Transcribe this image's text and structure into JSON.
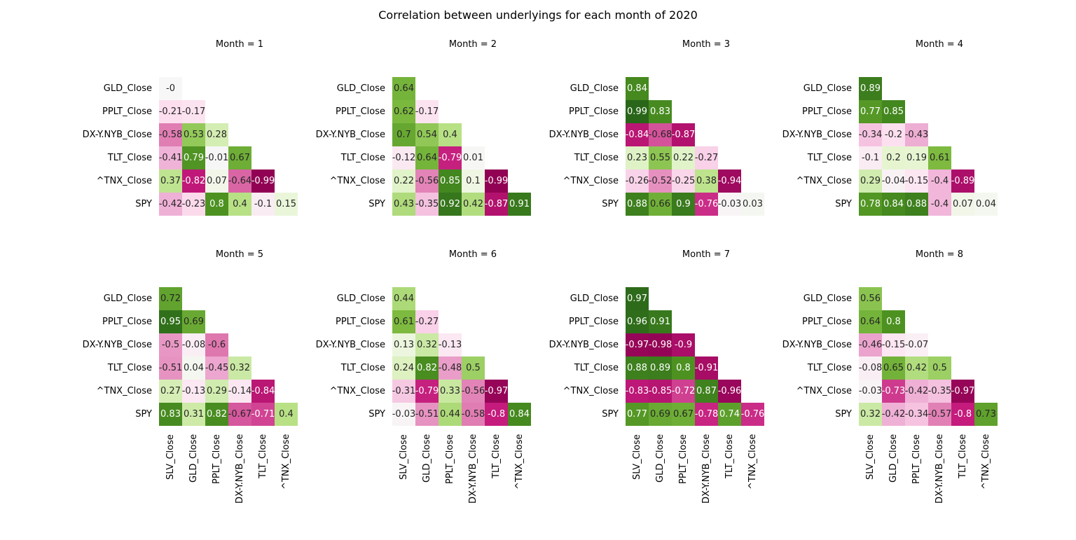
{
  "title": "Correlation between underlyings for each month of 2020",
  "chart_data": {
    "type": "heatmap",
    "title": "Correlation between underlyings for each month of 2020",
    "row_labels": [
      "GLD_Close",
      "PPLT_Close",
      "DX-Y.NYB_Close",
      "TLT_Close",
      "^TNX_Close",
      "SPY"
    ],
    "col_labels": [
      "SLV_Close",
      "GLD_Close",
      "PPLT_Close",
      "DX-Y.NYB_Close",
      "TLT_Close",
      "^TNX_Close"
    ],
    "colormap": "PiYG",
    "vmin": -1,
    "vmax": 1,
    "panels": [
      {
        "title": "Month = 1",
        "values": [
          [
            "-0"
          ],
          [
            "-0.21",
            "-0.17"
          ],
          [
            "-0.58",
            "0.53",
            "0.28"
          ],
          [
            "-0.41",
            "0.79",
            "-0.01",
            "0.67"
          ],
          [
            "0.37",
            "-0.82",
            "0.07",
            "-0.64",
            "-0.99"
          ],
          [
            "-0.42",
            "-0.23",
            "0.8",
            "0.4",
            "-0.1",
            "0.15"
          ]
        ]
      },
      {
        "title": "Month = 2",
        "values": [
          [
            "0.64"
          ],
          [
            "0.62",
            "-0.17"
          ],
          [
            "0.7",
            "0.54",
            "0.4"
          ],
          [
            "-0.12",
            "0.64",
            "-0.79",
            "0.01"
          ],
          [
            "0.22",
            "-0.56",
            "0.85",
            "0.1",
            "-0.99"
          ],
          [
            "0.43",
            "-0.35",
            "0.92",
            "0.42",
            "-0.87",
            "0.91"
          ]
        ]
      },
      {
        "title": "Month = 3",
        "values": [
          [
            "0.84"
          ],
          [
            "0.99",
            "0.83"
          ],
          [
            "-0.84",
            "-0.68",
            "-0.87"
          ],
          [
            "0.23",
            "0.55",
            "0.22",
            "-0.27"
          ],
          [
            "-0.26",
            "-0.52",
            "-0.25",
            "0.38",
            "-0.94"
          ],
          [
            "0.88",
            "0.66",
            "0.9",
            "-0.76",
            "-0.03",
            "0.03"
          ]
        ]
      },
      {
        "title": "Month = 4",
        "values": [
          [
            "0.89"
          ],
          [
            "0.77",
            "0.85"
          ],
          [
            "-0.34",
            "-0.2",
            "-0.43"
          ],
          [
            "-0.1",
            "0.2",
            "0.19",
            "0.61"
          ],
          [
            "0.29",
            "-0.04",
            "-0.15",
            "-0.4",
            "-0.89"
          ],
          [
            "0.78",
            "0.84",
            "0.88",
            "-0.4",
            "0.07",
            "0.04"
          ]
        ]
      },
      {
        "title": "Month = 5",
        "values": [
          [
            "0.72"
          ],
          [
            "0.95",
            "0.69"
          ],
          [
            "-0.5",
            "-0.08",
            "-0.6"
          ],
          [
            "-0.51",
            "0.04",
            "-0.45",
            "0.32"
          ],
          [
            "0.27",
            "-0.13",
            "0.29",
            "-0.14",
            "-0.84"
          ],
          [
            "0.83",
            "0.31",
            "0.82",
            "-0.67",
            "-0.71",
            "0.4"
          ]
        ]
      },
      {
        "title": "Month = 6",
        "values": [
          [
            "0.44"
          ],
          [
            "0.61",
            "-0.27"
          ],
          [
            "0.13",
            "0.32",
            "-0.13"
          ],
          [
            "0.24",
            "0.82",
            "-0.48",
            "0.5"
          ],
          [
            "-0.31",
            "-0.79",
            "0.33",
            "-0.56",
            "-0.97"
          ],
          [
            "-0.03",
            "-0.51",
            "0.44",
            "-0.58",
            "-0.8",
            "0.84"
          ]
        ]
      },
      {
        "title": "Month = 7",
        "values": [
          [
            "0.97"
          ],
          [
            "0.96",
            "0.91"
          ],
          [
            "-0.97",
            "-0.98",
            "-0.9"
          ],
          [
            "0.88",
            "0.89",
            "0.8",
            "-0.91"
          ],
          [
            "-0.83",
            "-0.85",
            "-0.72",
            "0.87",
            "-0.96"
          ],
          [
            "0.77",
            "0.69",
            "0.67",
            "-0.78",
            "0.74",
            "-0.76"
          ]
        ]
      },
      {
        "title": "Month = 8",
        "values": [
          [
            "0.56"
          ],
          [
            "0.64",
            "0.8"
          ],
          [
            "-0.46",
            "-0.15",
            "-0.07"
          ],
          [
            "-0.08",
            "0.65",
            "0.42",
            "0.5"
          ],
          [
            "-0.03",
            "-0.73",
            "-0.42",
            "-0.35",
            "-0.97"
          ],
          [
            "0.32",
            "-0.42",
            "-0.34",
            "-0.57",
            "-0.8",
            "0.73"
          ]
        ]
      }
    ]
  }
}
